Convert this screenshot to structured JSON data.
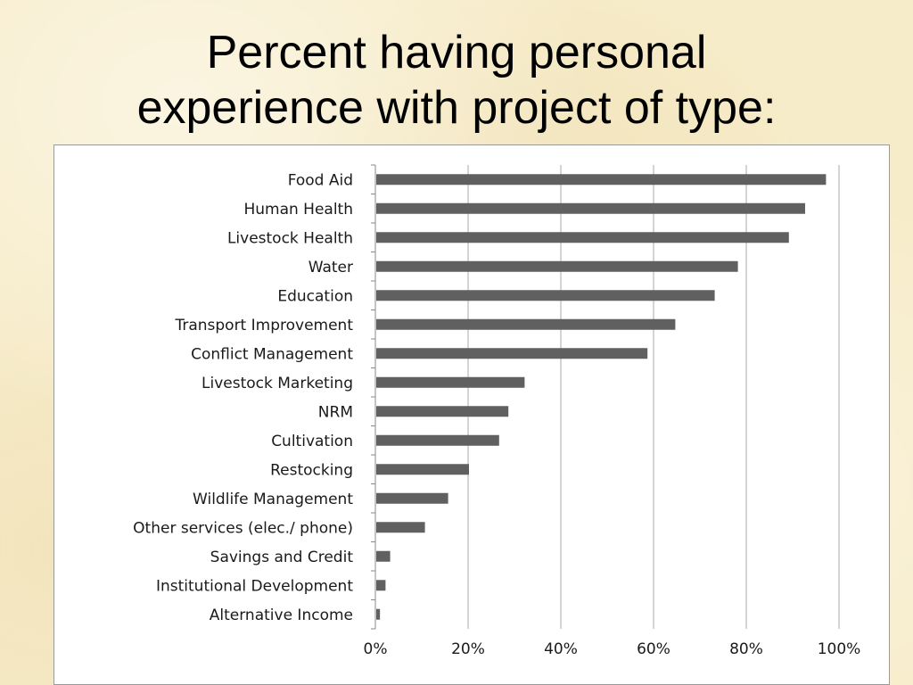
{
  "slide": {
    "title_line1": "Percent having personal",
    "title_line2": "experience with project of type:"
  },
  "chart_data": {
    "type": "bar",
    "orientation": "horizontal",
    "title": "",
    "xlabel": "",
    "ylabel": "",
    "categories": [
      "Food Aid",
      "Human Health",
      "Livestock Health",
      "Water",
      "Education",
      "Transport Improvement",
      "Conflict Management",
      "Livestock Marketing",
      "NRM",
      "Cultivation",
      "Restocking",
      "Wildlife Management",
      "Other services (elec./ phone)",
      "Savings and Credit",
      "Institutional Development",
      "Alternative Income"
    ],
    "values": [
      0.97,
      0.925,
      0.89,
      0.78,
      0.73,
      0.645,
      0.585,
      0.32,
      0.285,
      0.265,
      0.2,
      0.155,
      0.105,
      0.03,
      0.02,
      0.008
    ],
    "xlim": [
      0,
      1
    ],
    "x_ticks": [
      "0%",
      "20%",
      "40%",
      "60%",
      "80%",
      "100%"
    ],
    "grid": "vertical",
    "legend": "none",
    "bar_color": "#606060"
  }
}
